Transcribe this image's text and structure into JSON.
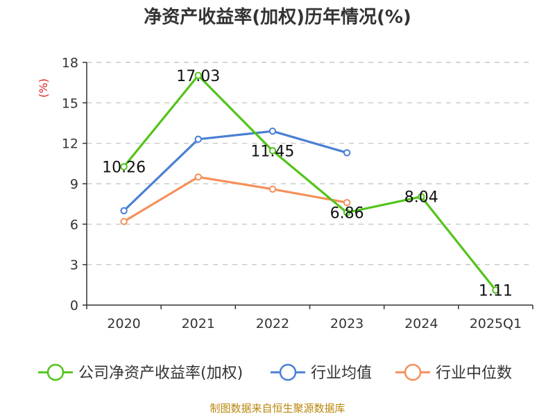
{
  "chart_data": {
    "type": "line",
    "title": "净资产收益率(加权)历年情况(%)",
    "ylabel": "(%)",
    "categories": [
      "2020",
      "2021",
      "2022",
      "2023",
      "2024",
      "2025Q1"
    ],
    "ylim": [
      0,
      18
    ],
    "yticks": [
      0,
      3,
      6,
      9,
      12,
      15,
      18
    ],
    "grid": true,
    "legend_position": "bottom",
    "series": [
      {
        "name": "公司净资产收益率(加权)",
        "color": "#52c41a",
        "values": [
          10.26,
          17.03,
          11.45,
          6.86,
          8.04,
          1.11
        ],
        "show_labels": true
      },
      {
        "name": "行业均值",
        "color": "#4a7fd4",
        "values": [
          7.0,
          12.3,
          12.9,
          11.3,
          null,
          null
        ],
        "show_labels": false
      },
      {
        "name": "行业中位数",
        "color": "#f4905a",
        "values": [
          6.2,
          9.5,
          8.6,
          7.6,
          null,
          null
        ],
        "show_labels": false
      }
    ],
    "source": "制图数据来自恒生聚源数据库"
  }
}
